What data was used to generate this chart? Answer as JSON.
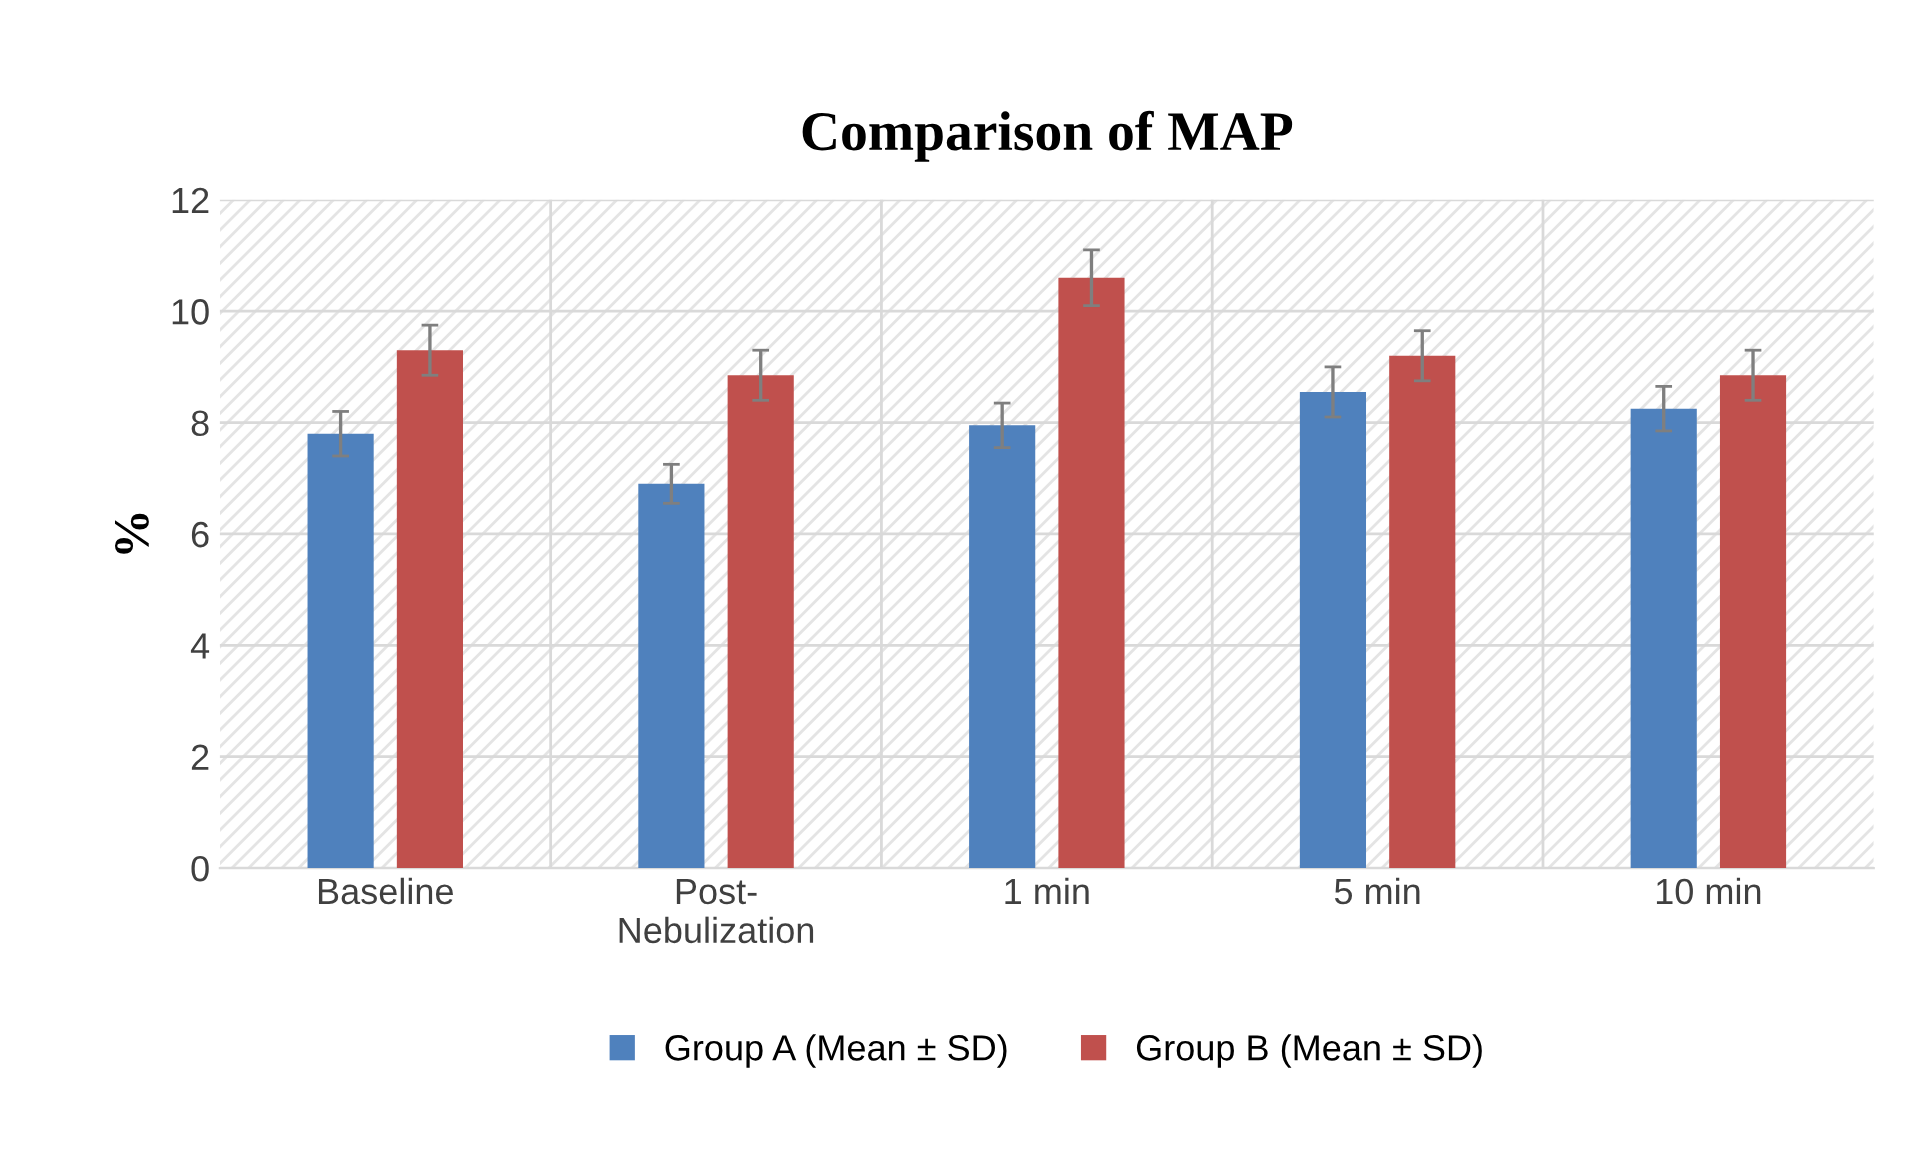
{
  "chart_data": {
    "type": "bar",
    "title": "Comparison of MAP",
    "ylabel": "%",
    "categories": [
      "Baseline",
      "Post-\nNebulization",
      "1 min",
      "5 min",
      "10 min"
    ],
    "series": [
      {
        "name": "Group A (Mean ± SD)",
        "color": "#4f81bd",
        "values": [
          7.8,
          6.9,
          7.95,
          8.55,
          8.25
        ],
        "errors": [
          0.4,
          0.35,
          0.4,
          0.45,
          0.4
        ]
      },
      {
        "name": "Group B (Mean ± SD)",
        "color": "#c0504d",
        "values": [
          9.3,
          8.85,
          10.6,
          9.2,
          8.85
        ],
        "errors": [
          0.45,
          0.45,
          0.5,
          0.45,
          0.45
        ]
      }
    ],
    "ylim": [
      0,
      12
    ],
    "yticks": [
      0,
      2,
      4,
      6,
      8,
      10,
      12
    ],
    "grid": true,
    "legend": "bottom"
  }
}
